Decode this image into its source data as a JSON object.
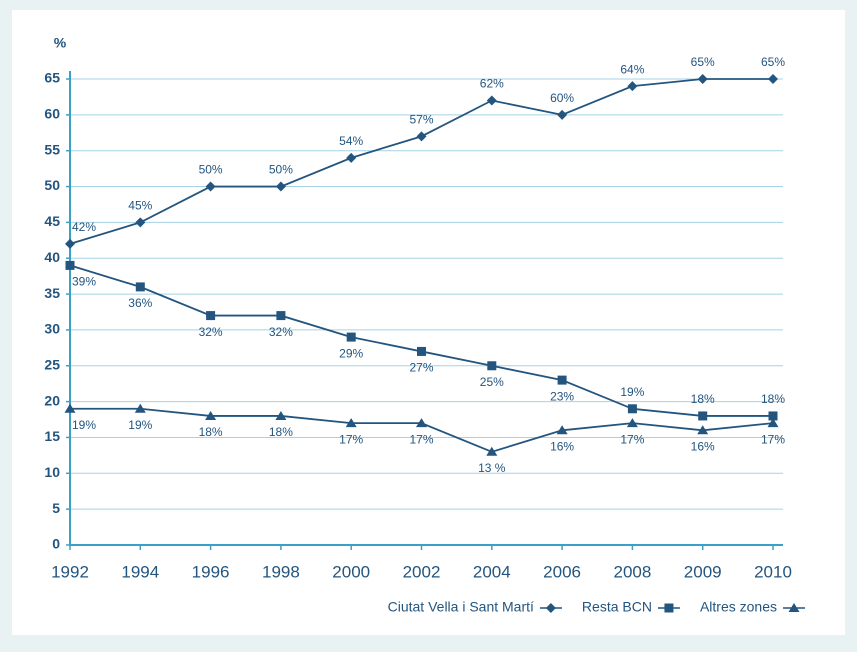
{
  "chart_data": {
    "type": "line",
    "ylabel": "%",
    "categories": [
      "1992",
      "1994",
      "1996",
      "1998",
      "2000",
      "2002",
      "2004",
      "2006",
      "2008",
      "2009",
      "2010"
    ],
    "series": [
      {
        "name": "Ciutat Vella i Sant Martí",
        "color": "#23557f",
        "marker": "diamond",
        "values": [
          42,
          45,
          50,
          50,
          54,
          57,
          62,
          60,
          64,
          65,
          65
        ],
        "value_labels": [
          "42%",
          "45%",
          "50%",
          "50%",
          "54%",
          "57%",
          "62%",
          "60%",
          "64%",
          "65%",
          "65%"
        ]
      },
      {
        "name": "Resta BCN",
        "color": "#23557f",
        "marker": "square",
        "values": [
          39,
          36,
          32,
          32,
          29,
          27,
          25,
          23,
          19,
          18,
          18
        ],
        "value_labels": [
          "39%",
          "36%",
          "32%",
          "32%",
          "29%",
          "27%",
          "25%",
          "23%",
          "19%",
          "18%",
          "18%"
        ]
      },
      {
        "name": "Altres zones",
        "color": "#23557f",
        "marker": "triangle",
        "values": [
          19,
          19,
          18,
          18,
          17,
          17,
          13,
          16,
          17,
          16,
          17
        ],
        "value_labels": [
          "19%",
          "19%",
          "18%",
          "18%",
          "17%",
          "17%",
          "13 %",
          "16%",
          "17%",
          "16%",
          "17%"
        ]
      }
    ],
    "ylim": [
      0,
      65
    ],
    "yticks": [
      0,
      5,
      10,
      15,
      20,
      25,
      30,
      35,
      40,
      45,
      50,
      55,
      60,
      65
    ],
    "grid": true,
    "legend": "bottom-right"
  }
}
